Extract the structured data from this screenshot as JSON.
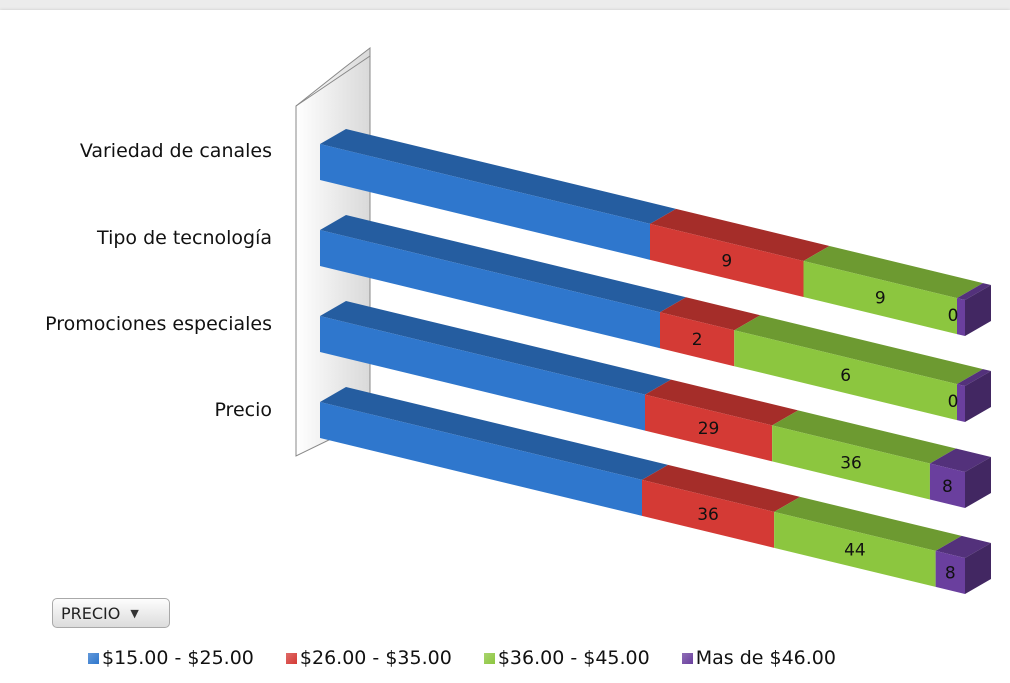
{
  "filter": {
    "label": "PRECIO",
    "arrow": "▼"
  },
  "chart_data": {
    "type": "bar",
    "orientation": "horizontal",
    "stacked": true,
    "three_d": true,
    "legend_position": "bottom",
    "categories": [
      "Variedad de canales",
      "Tipo de tecnología",
      "Promociones especiales",
      "Precio"
    ],
    "series": [
      {
        "name": "$15.00 - $25.00",
        "color": "#2f77cd",
        "values": [
          null,
          null,
          null,
          null
        ]
      },
      {
        "name": "$26.00 - $35.00",
        "color": "#d43a35",
        "values": [
          9,
          2,
          29,
          36
        ]
      },
      {
        "name": "$36.00 - $45.00",
        "color": "#8cc63f",
        "values": [
          9,
          6,
          36,
          44
        ]
      },
      {
        "name": "Mas de $46.00",
        "color": "#6a3f9e",
        "values": [
          0,
          0,
          8,
          8
        ]
      }
    ]
  }
}
